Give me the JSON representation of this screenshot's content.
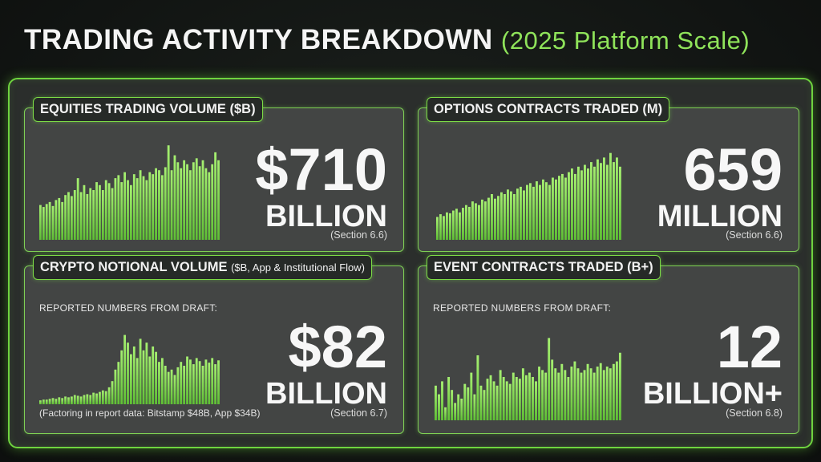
{
  "header": {
    "title_main": "TRADING ACTIVITY BREAKDOWN",
    "title_sub": "(2025 Platform Scale)"
  },
  "colors": {
    "accent": "#7ddc46",
    "bar": "#8be35c",
    "card_bg": "#434544",
    "background": "#111412"
  },
  "cards": {
    "equities": {
      "label": "EQUITIES TRADING VOLUME ($B)",
      "value": "$710",
      "unit": "BILLION",
      "section": "(Section 6.6)"
    },
    "options": {
      "label": "OPTIONS CONTRACTS TRADED (M)",
      "value": "659",
      "unit": "MILLION",
      "section": "(Section 6.6)"
    },
    "crypto": {
      "label": "CRYPTO NOTIONAL VOLUME",
      "label_small": "($B, App & Institutional Flow)",
      "reported": "REPORTED NUMBERS FROM DRAFT:",
      "value": "$82",
      "unit": "BILLION",
      "footnote": "(Factoring in report data: Bitstamp $48B, App $34B)",
      "section": "(Section 6.7)"
    },
    "events": {
      "label": "EVENT CONTRACTS TRADED (B+)",
      "reported": "REPORTED NUMBERS FROM DRAFT:",
      "value": "12",
      "unit": "BILLION+",
      "section": "(Section 6.8)"
    }
  },
  "chart_data": [
    {
      "type": "bar",
      "name": "equities-sparkline",
      "values": [
        0.35,
        0.33,
        0.36,
        0.38,
        0.34,
        0.4,
        0.42,
        0.38,
        0.45,
        0.48,
        0.44,
        0.5,
        0.62,
        0.48,
        0.55,
        0.46,
        0.52,
        0.5,
        0.58,
        0.55,
        0.5,
        0.6,
        0.57,
        0.52,
        0.62,
        0.65,
        0.58,
        0.68,
        0.6,
        0.55,
        0.66,
        0.62,
        0.7,
        0.64,
        0.6,
        0.68,
        0.66,
        0.72,
        0.7,
        0.65,
        0.73,
        0.95,
        0.7,
        0.85,
        0.78,
        0.72,
        0.8,
        0.76,
        0.7,
        0.78,
        0.82,
        0.74,
        0.8,
        0.72,
        0.68,
        0.76,
        0.88,
        0.8
      ],
      "ylim": [
        0,
        1
      ]
    },
    {
      "type": "bar",
      "name": "options-sparkline",
      "values": [
        0.25,
        0.28,
        0.26,
        0.3,
        0.29,
        0.32,
        0.34,
        0.3,
        0.35,
        0.38,
        0.36,
        0.42,
        0.4,
        0.38,
        0.44,
        0.42,
        0.46,
        0.5,
        0.45,
        0.48,
        0.52,
        0.5,
        0.55,
        0.53,
        0.5,
        0.56,
        0.58,
        0.54,
        0.6,
        0.62,
        0.58,
        0.64,
        0.6,
        0.66,
        0.63,
        0.6,
        0.68,
        0.66,
        0.7,
        0.72,
        0.68,
        0.74,
        0.78,
        0.72,
        0.8,
        0.76,
        0.82,
        0.78,
        0.85,
        0.8,
        0.88,
        0.84,
        0.9,
        0.82,
        0.95,
        0.85,
        0.9,
        0.8
      ],
      "ylim": [
        0,
        1
      ]
    },
    {
      "type": "bar",
      "name": "crypto-sparkline",
      "values": [
        0.05,
        0.06,
        0.06,
        0.07,
        0.08,
        0.07,
        0.09,
        0.08,
        0.1,
        0.09,
        0.1,
        0.12,
        0.11,
        0.1,
        0.12,
        0.13,
        0.12,
        0.15,
        0.14,
        0.16,
        0.18,
        0.17,
        0.22,
        0.3,
        0.45,
        0.55,
        0.7,
        0.9,
        0.8,
        0.65,
        0.75,
        0.6,
        0.85,
        0.7,
        0.8,
        0.62,
        0.75,
        0.68,
        0.55,
        0.6,
        0.5,
        0.42,
        0.45,
        0.38,
        0.48,
        0.55,
        0.5,
        0.62,
        0.58,
        0.52,
        0.6,
        0.56,
        0.5,
        0.58,
        0.54,
        0.6,
        0.52,
        0.57
      ],
      "ylim": [
        0,
        1
      ]
    },
    {
      "type": "bar",
      "name": "events-sparkline",
      "values": [
        0.4,
        0.3,
        0.45,
        0.15,
        0.5,
        0.35,
        0.2,
        0.3,
        0.25,
        0.42,
        0.38,
        0.55,
        0.3,
        0.75,
        0.4,
        0.35,
        0.48,
        0.52,
        0.45,
        0.4,
        0.58,
        0.5,
        0.45,
        0.42,
        0.55,
        0.5,
        0.48,
        0.6,
        0.52,
        0.55,
        0.5,
        0.45,
        0.62,
        0.58,
        0.55,
        0.95,
        0.7,
        0.6,
        0.55,
        0.65,
        0.58,
        0.5,
        0.62,
        0.68,
        0.6,
        0.55,
        0.58,
        0.65,
        0.6,
        0.55,
        0.62,
        0.66,
        0.58,
        0.62,
        0.6,
        0.65,
        0.68,
        0.78
      ],
      "ylim": [
        0,
        1
      ]
    }
  ]
}
